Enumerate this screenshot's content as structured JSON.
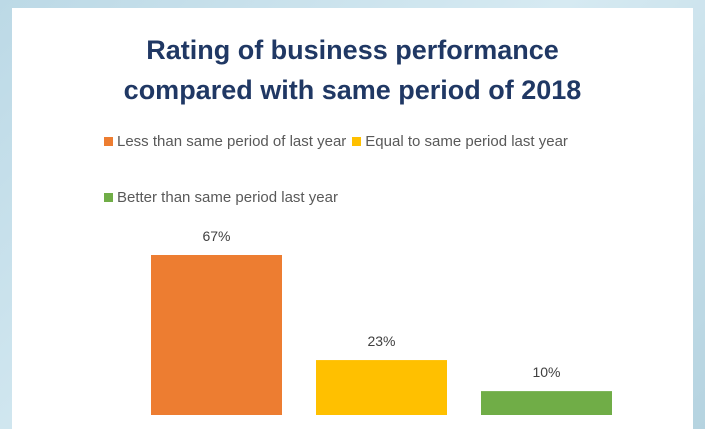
{
  "chart_data": {
    "type": "bar",
    "title": "Rating of business performance compared with same period of 2018",
    "series": [
      {
        "name": "Less than same period of last year",
        "color": "#ed7d31",
        "values": [
          67
        ],
        "value_labels": [
          "67%"
        ]
      },
      {
        "name": "Equal to same period last year",
        "color": "#ffc000",
        "values": [
          23
        ],
        "value_labels": [
          "23%"
        ]
      },
      {
        "name": "Better than same period last year",
        "color": "#70ad47",
        "values": [
          10
        ],
        "value_labels": [
          "10%"
        ]
      }
    ]
  }
}
